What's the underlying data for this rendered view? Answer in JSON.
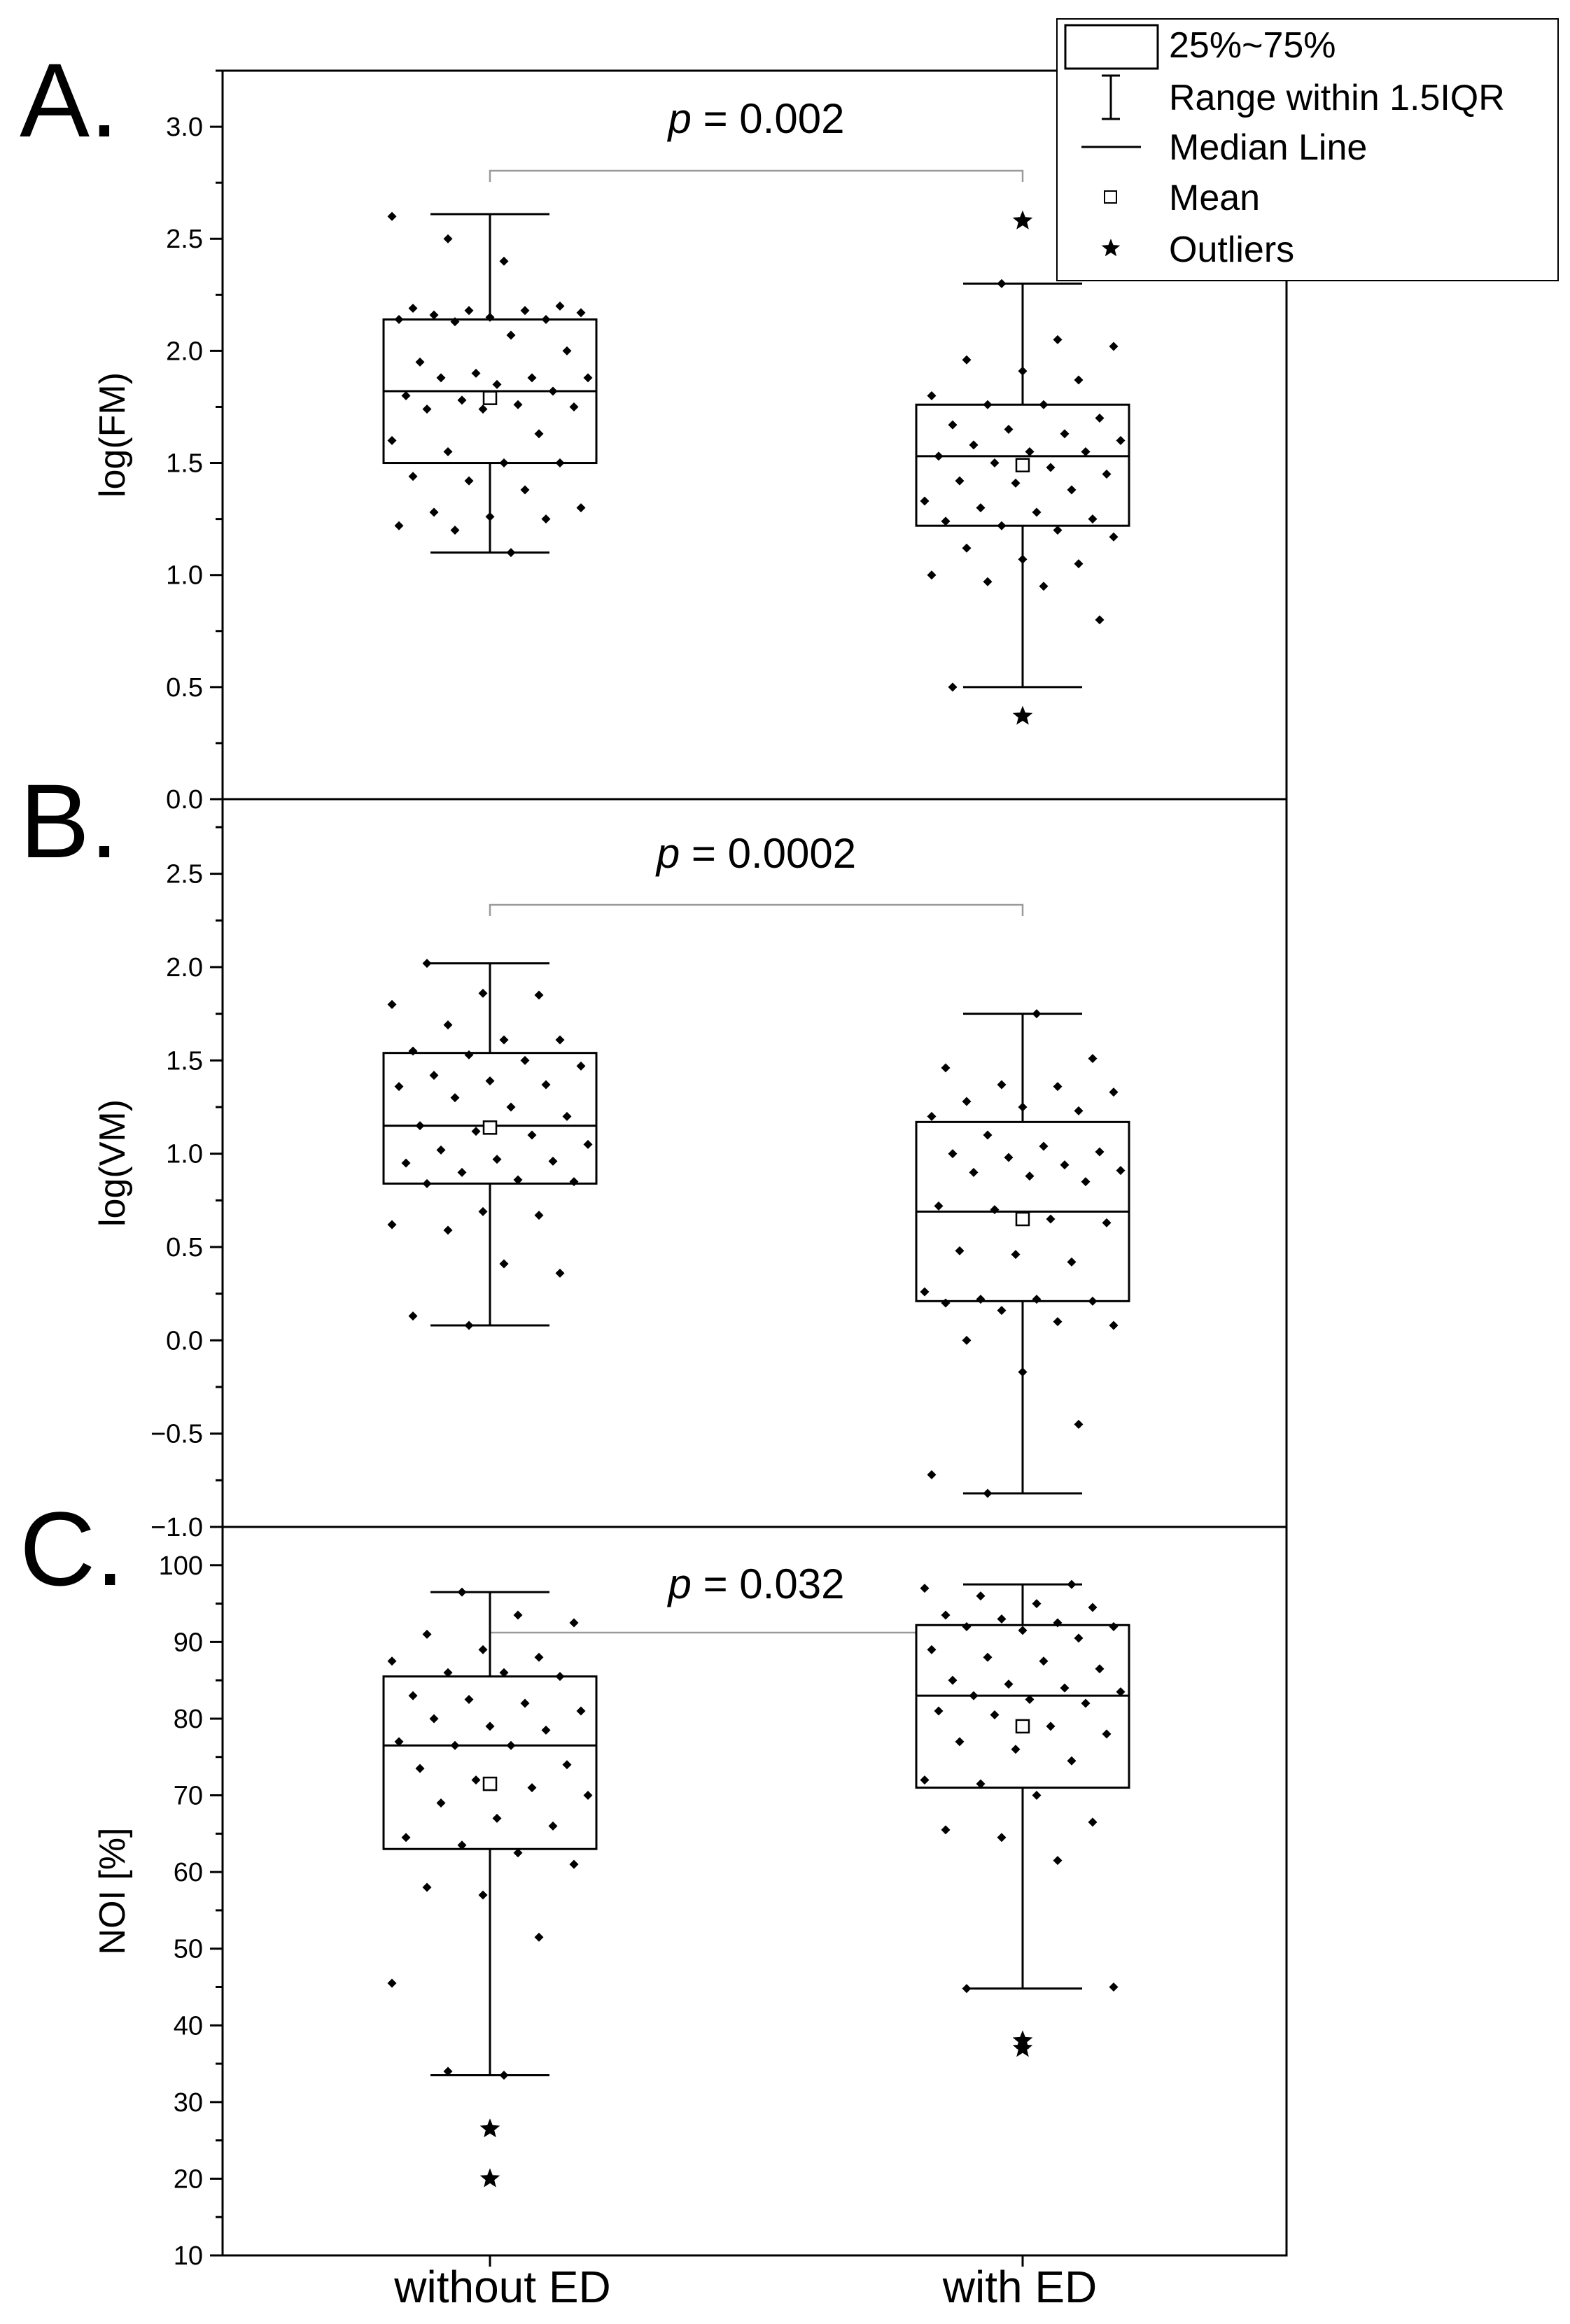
{
  "figure": {
    "categories": [
      "without ED",
      "with ED"
    ],
    "legend": {
      "box": "25%~75%",
      "whisker": "Range within 1.5IQR",
      "median": "Median Line",
      "mean": "Mean",
      "outlier": "Outliers"
    }
  },
  "chart_data": [
    {
      "type": "box",
      "panel": "A.",
      "ylabel": "log(FM)",
      "ylim": [
        0,
        3.25
      ],
      "yticks": [
        "0.0",
        "0.5",
        "1.0",
        "1.5",
        "2.0",
        "2.5",
        "3.0"
      ],
      "p_prefix": "p",
      "p_value": "= 0.002",
      "categories": [
        "without ED",
        "with ED"
      ],
      "groups": [
        {
          "name": "without ED",
          "q1": 1.5,
          "median": 1.82,
          "q3": 2.14,
          "whisker_low": 1.1,
          "whisker_high": 2.61,
          "mean": 1.79,
          "outliers": [],
          "points": [
            2.6,
            2.5,
            2.4,
            2.2,
            2.19,
            2.18,
            2.18,
            2.17,
            2.16,
            2.15,
            2.14,
            2.14,
            2.13,
            2.07,
            2.0,
            1.95,
            1.9,
            1.88,
            1.88,
            1.88,
            1.85,
            1.82,
            1.8,
            1.78,
            1.76,
            1.75,
            1.74,
            1.74,
            1.63,
            1.6,
            1.55,
            1.5,
            1.5,
            1.44,
            1.42,
            1.38,
            1.3,
            1.28,
            1.26,
            1.25,
            1.22,
            1.2,
            1.1
          ]
        },
        {
          "name": "with ED",
          "q1": 1.22,
          "median": 1.53,
          "q3": 1.76,
          "whisker_low": 0.5,
          "whisker_high": 2.3,
          "mean": 1.49,
          "outliers": [
            2.58,
            0.37
          ],
          "points": [
            2.3,
            2.05,
            2.02,
            1.96,
            1.91,
            1.87,
            1.8,
            1.76,
            1.76,
            1.7,
            1.67,
            1.65,
            1.63,
            1.6,
            1.58,
            1.55,
            1.55,
            1.53,
            1.5,
            1.48,
            1.45,
            1.42,
            1.41,
            1.38,
            1.33,
            1.3,
            1.28,
            1.25,
            1.24,
            1.22,
            1.2,
            1.17,
            1.12,
            1.07,
            1.05,
            1.0,
            0.97,
            0.95,
            0.8,
            0.5
          ]
        }
      ]
    },
    {
      "type": "box",
      "panel": "B.",
      "ylabel": "log(VM)",
      "ylim": [
        -1.0,
        2.9
      ],
      "yticks": [
        "−1.0",
        "−0.5",
        "0.0",
        "0.5",
        "1.0",
        "1.5",
        "2.0",
        "2.5"
      ],
      "p_prefix": "p",
      "p_value": "= 0.0002",
      "categories": [
        "without ED",
        "with ED"
      ],
      "groups": [
        {
          "name": "without ED",
          "q1": 0.84,
          "median": 1.15,
          "q3": 1.54,
          "whisker_low": 0.08,
          "whisker_high": 2.02,
          "mean": 1.14,
          "outliers": [],
          "points": [
            2.02,
            1.86,
            1.85,
            1.8,
            1.69,
            1.61,
            1.61,
            1.55,
            1.53,
            1.5,
            1.47,
            1.42,
            1.39,
            1.37,
            1.36,
            1.3,
            1.25,
            1.2,
            1.15,
            1.12,
            1.1,
            1.05,
            1.02,
            0.97,
            0.96,
            0.95,
            0.9,
            0.86,
            0.85,
            0.84,
            0.69,
            0.67,
            0.62,
            0.59,
            0.41,
            0.36,
            0.13,
            0.08
          ]
        },
        {
          "name": "with ED",
          "q1": 0.21,
          "median": 0.69,
          "q3": 1.17,
          "whisker_low": -0.82,
          "whisker_high": 1.75,
          "mean": 0.65,
          "outliers": [],
          "points": [
            1.75,
            1.51,
            1.46,
            1.37,
            1.36,
            1.33,
            1.28,
            1.25,
            1.23,
            1.2,
            1.1,
            1.04,
            1.01,
            1.0,
            0.98,
            0.94,
            0.91,
            0.9,
            0.88,
            0.85,
            0.72,
            0.7,
            0.65,
            0.63,
            0.48,
            0.46,
            0.42,
            0.26,
            0.22,
            0.22,
            0.21,
            0.2,
            0.16,
            0.1,
            0.08,
            0.0,
            -0.17,
            -0.45,
            -0.72,
            -0.82
          ]
        }
      ]
    },
    {
      "type": "box",
      "panel": "C.",
      "ylabel": "NOI [%]",
      "ylim": [
        10,
        105
      ],
      "yticks": [
        "10",
        "20",
        "30",
        "40",
        "50",
        "60",
        "70",
        "80",
        "90",
        "100"
      ],
      "p_prefix": "p",
      "p_value": "= 0.032",
      "categories": [
        "without ED",
        "with ED"
      ],
      "groups": [
        {
          "name": "without ED",
          "q1": 63,
          "median": 76.5,
          "q3": 85.5,
          "whisker_low": 33.5,
          "whisker_high": 96.5,
          "mean": 71.5,
          "outliers": [
            26.5,
            20
          ],
          "points": [
            96.5,
            93.5,
            92.5,
            91,
            89,
            88,
            87.5,
            86,
            86,
            85.5,
            83,
            82.5,
            82,
            81,
            80,
            79,
            78.5,
            77,
            76.5,
            76.5,
            74,
            73.5,
            72,
            71,
            70,
            69,
            67,
            66,
            64.5,
            63.5,
            62.5,
            61,
            58,
            57,
            51.5,
            45.5,
            34,
            33.5
          ]
        },
        {
          "name": "with ED",
          "q1": 71,
          "median": 83,
          "q3": 92.2,
          "whisker_low": 44.8,
          "whisker_high": 97.5,
          "mean": 79,
          "outliers": [
            38,
            37
          ],
          "points": [
            97.5,
            97,
            96,
            95,
            94.5,
            93.5,
            93,
            92.5,
            92,
            92,
            91.5,
            90.5,
            89,
            88,
            87.5,
            86.5,
            85,
            84.5,
            84,
            83.5,
            83,
            82.5,
            82,
            81,
            80.5,
            79,
            78,
            77,
            76,
            74.5,
            72,
            71.5,
            70,
            66.5,
            65.5,
            64.5,
            61.5,
            45,
            44.8
          ]
        }
      ]
    }
  ]
}
